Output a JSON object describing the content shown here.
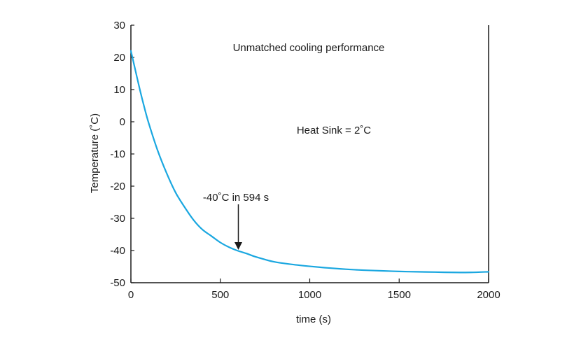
{
  "chart_data": {
    "type": "line",
    "xlabel": "time (s)",
    "ylabel": "Temperature (˚C)",
    "xlim": [
      0,
      2000
    ],
    "ylim": [
      -50,
      30
    ],
    "xticks": [
      0,
      500,
      1000,
      1500,
      2000
    ],
    "xtick_labels": [
      "0",
      "500",
      "1000",
      "1500",
      "2000"
    ],
    "yticks": [
      30,
      20,
      10,
      0,
      -10,
      -20,
      -30,
      -40,
      -50
    ],
    "ytick_labels": [
      "30",
      "20",
      "10",
      "0",
      "-10",
      "-20",
      "-30",
      "-40",
      "-50"
    ],
    "grid": false,
    "color": "#1aa7e0",
    "series": [
      {
        "x": [
          0,
          25,
          50,
          75,
          100,
          150,
          200,
          250,
          300,
          350,
          400,
          450,
          500,
          550,
          594,
          650,
          700,
          800,
          900,
          1000,
          1100,
          1200,
          1300,
          1400,
          1500,
          1600,
          1700,
          1800,
          1900,
          2000
        ],
        "y": [
          22,
          16,
          10,
          4.5,
          -0.5,
          -9,
          -16,
          -22,
          -26.5,
          -30.5,
          -33.5,
          -35.5,
          -37.5,
          -39,
          -40,
          -41,
          -42,
          -43.5,
          -44.3,
          -44.9,
          -45.4,
          -45.8,
          -46.1,
          -46.3,
          -46.5,
          -46.6,
          -46.7,
          -46.8,
          -46.8,
          -46.6
        ]
      }
    ],
    "annotations": [
      {
        "text": "Unmatched cooling performance"
      },
      {
        "text": "Heat Sink = 2˚C"
      },
      {
        "text": "-40˚C in 594 s",
        "arrow_to": [
          594,
          -40
        ]
      }
    ]
  }
}
